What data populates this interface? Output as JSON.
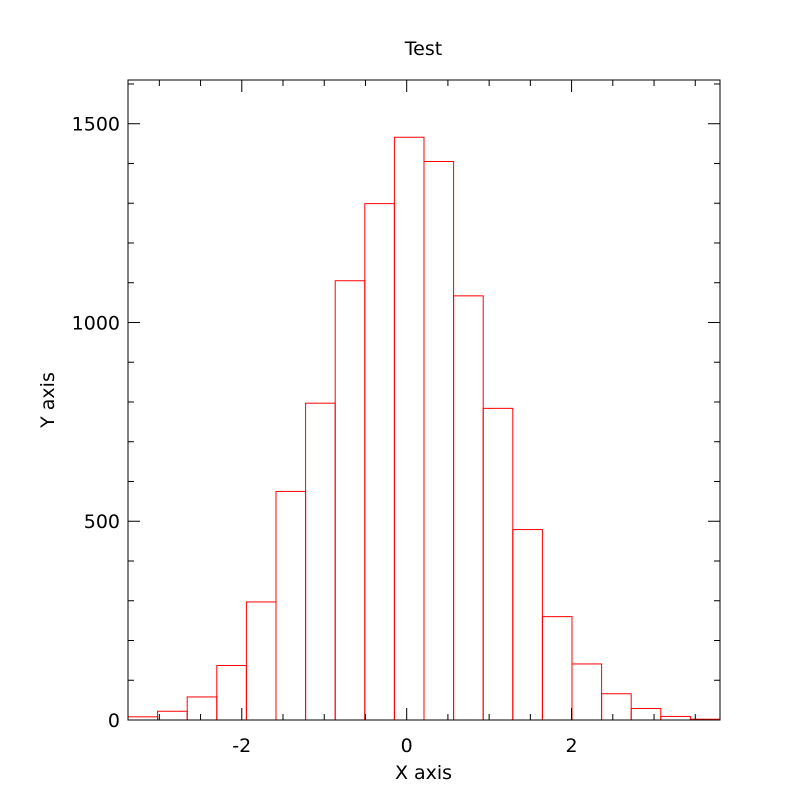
{
  "chart_data": {
    "type": "bar",
    "title": "Test",
    "xlabel": "X axis",
    "ylabel": "Y axis",
    "xlim": [
      -3.38,
      3.8
    ],
    "ylim": [
      0,
      1610
    ],
    "bin_edges": [
      -3.38,
      -3.021,
      -2.662,
      -2.303,
      -1.944,
      -1.585,
      -1.226,
      -0.867,
      -0.508,
      -0.149,
      0.21,
      0.569,
      0.928,
      1.287,
      1.646,
      2.005,
      2.364,
      2.723,
      3.082,
      3.441,
      3.8
    ],
    "values": [
      8,
      22,
      58,
      137,
      297,
      575,
      797,
      1105,
      1299,
      1466,
      1405,
      1067,
      784,
      479,
      260,
      141,
      66,
      29,
      9,
      2
    ],
    "xticks": [
      -2,
      0,
      2
    ],
    "xtick_labels": [
      "-2",
      "0",
      "2"
    ],
    "yticks": [
      0,
      500,
      1000,
      1500
    ],
    "ytick_labels": [
      "0",
      "500",
      "1000",
      "1500"
    ],
    "grid": false,
    "bar_fill": "none",
    "bar_edge_color": "#ff0000"
  }
}
